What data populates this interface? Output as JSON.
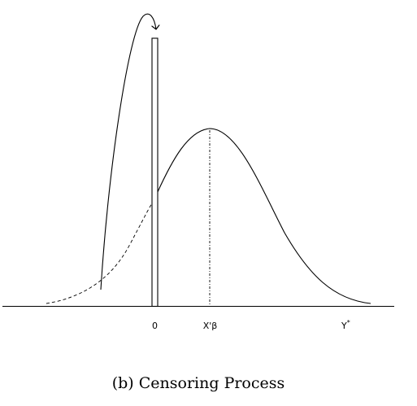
{
  "figure": {
    "labels": {
      "zero": "0",
      "mean": "X'β",
      "latent": "Y",
      "latent_superscript": "*"
    },
    "caption": "(b) Censoring Process",
    "colors": {
      "stroke": "#000000",
      "background": "#ffffff"
    }
  }
}
